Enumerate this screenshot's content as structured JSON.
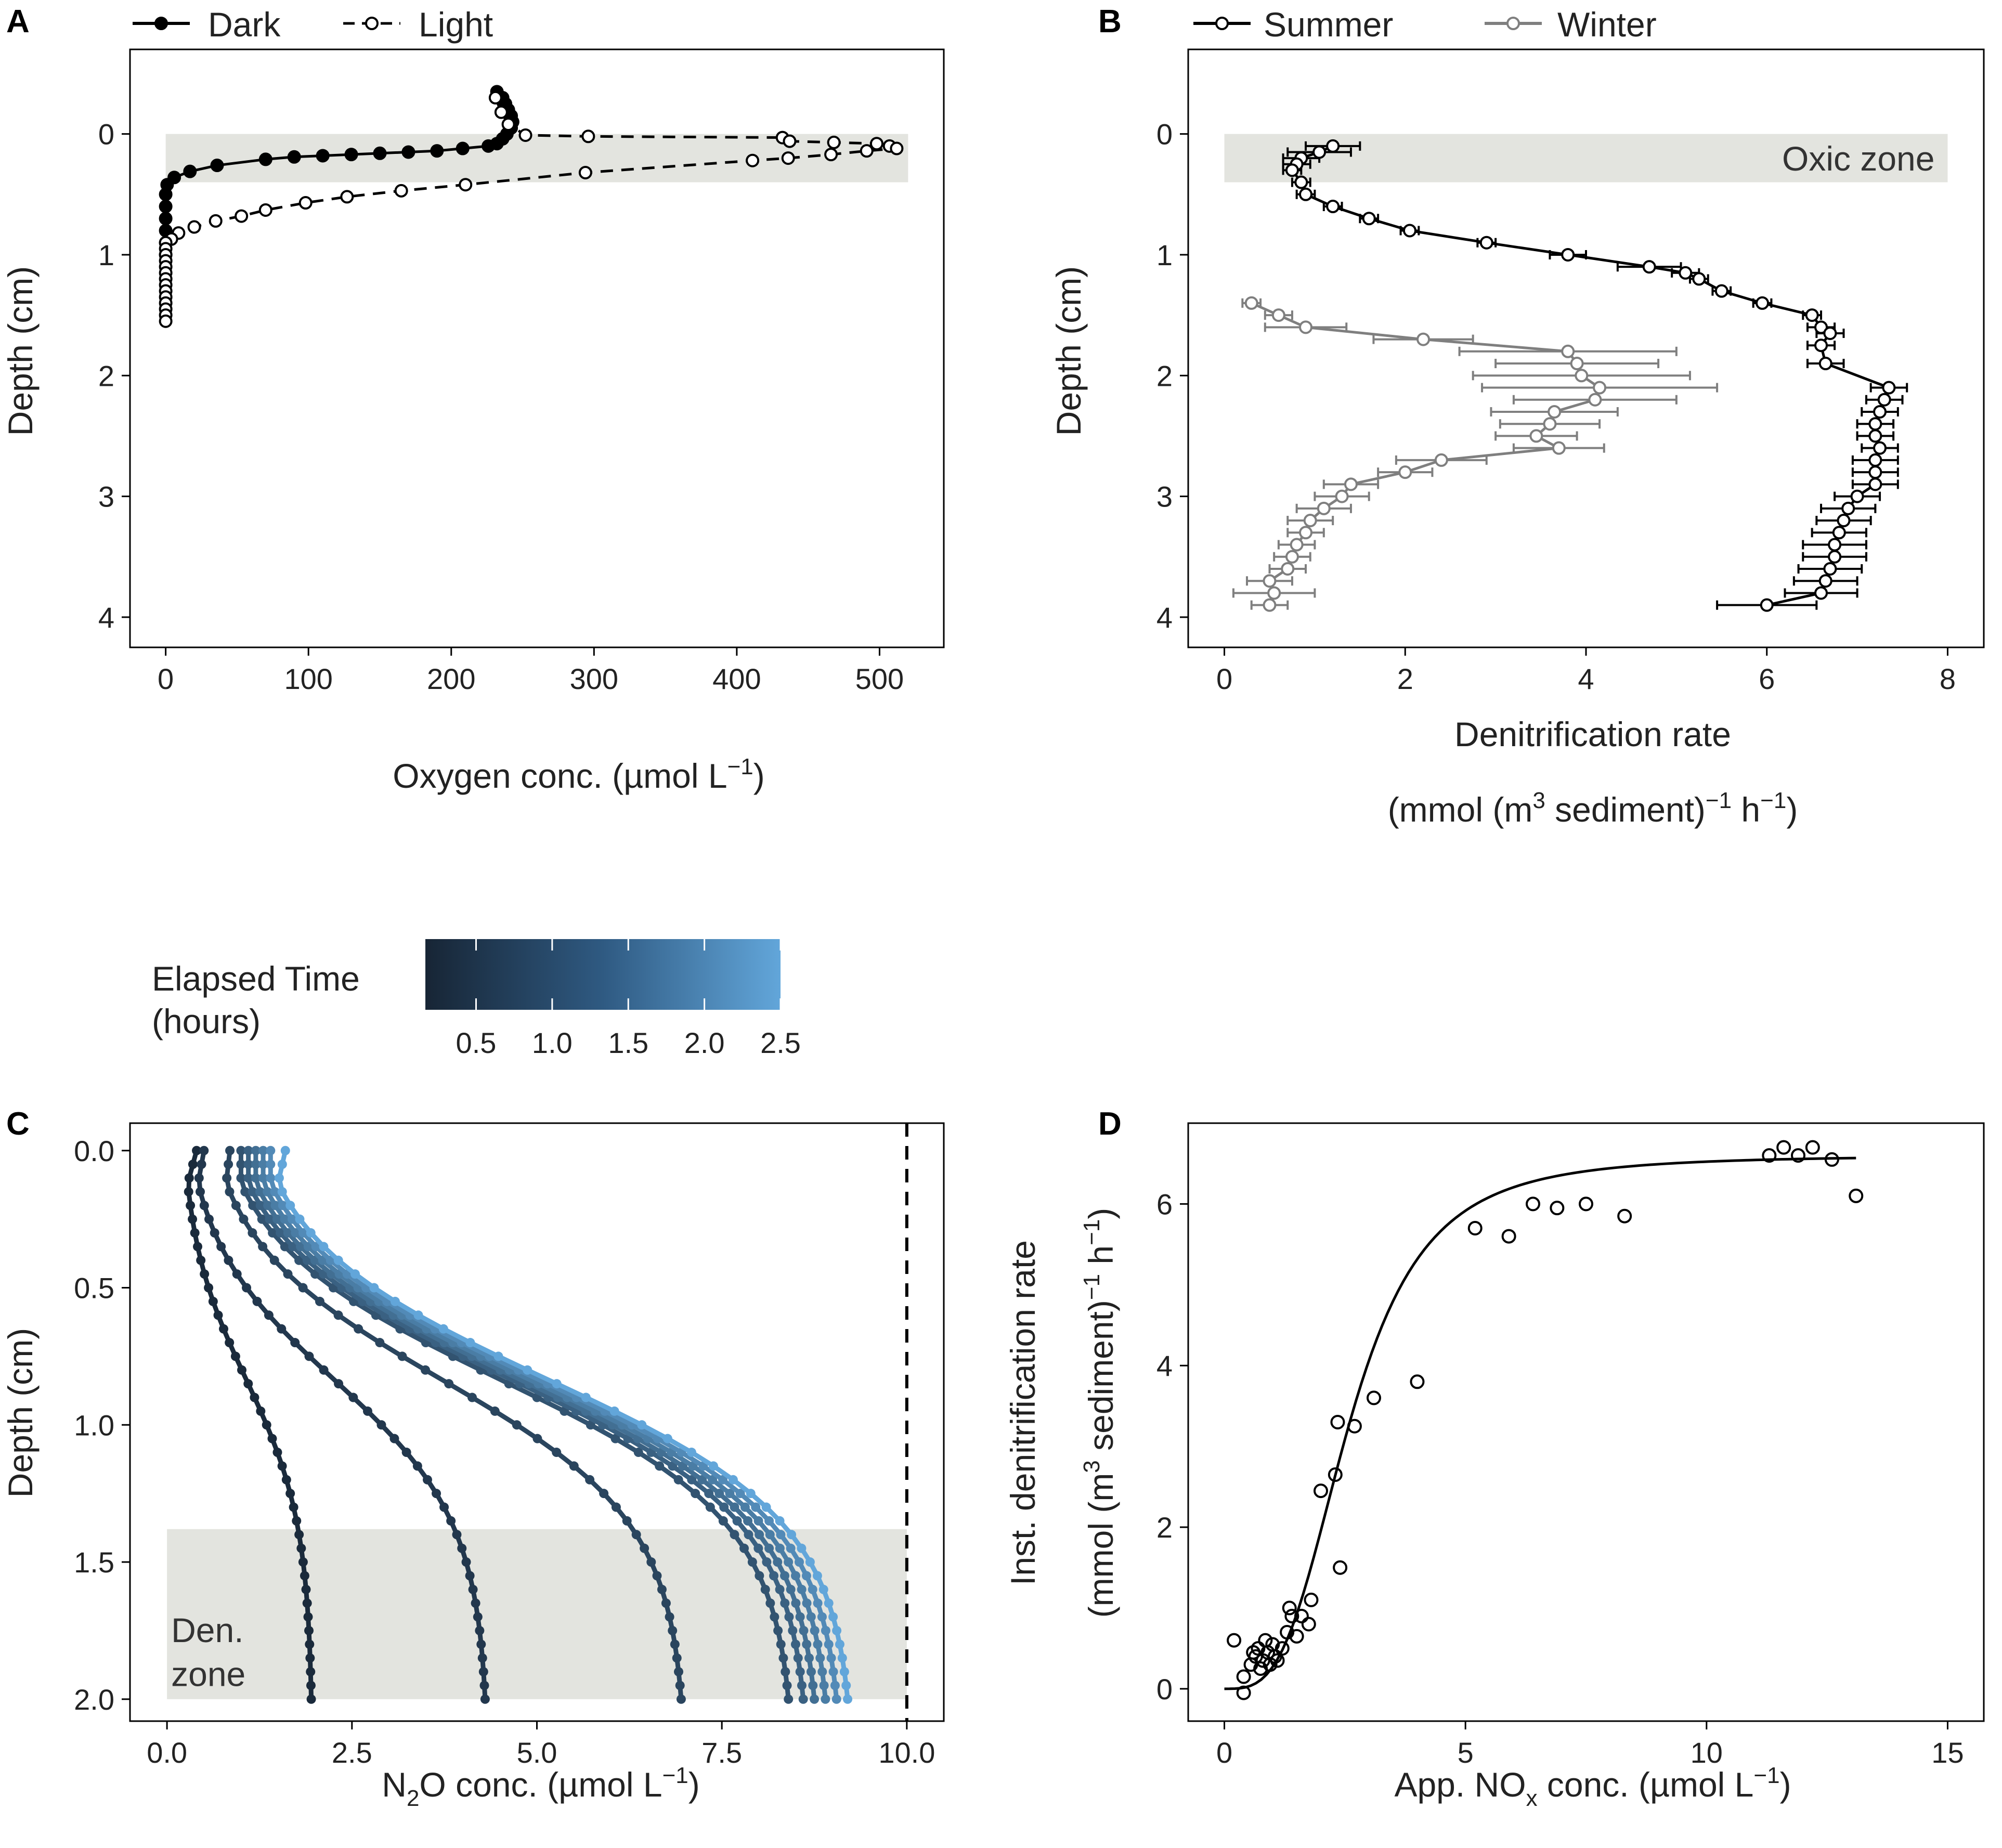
{
  "chart_data": [
    {
      "panel": "A",
      "type": "line",
      "xlabel_main": "Oxygen conc. (µmol L",
      "xlabel_sup": "−1",
      "xlabel_end": ")",
      "ylabel": "Depth (cm)",
      "xlim": [
        -25,
        545
      ],
      "ylim": [
        -0.7,
        4.25
      ],
      "xticks": [
        0,
        100,
        200,
        300,
        400,
        500
      ],
      "yticks": [
        0,
        1,
        2,
        3,
        4
      ],
      "shade": {
        "ymin": 0.0,
        "ymax": 0.4,
        "xmin": 0,
        "xmax": 520
      },
      "legend": [
        {
          "name": "Dark",
          "style": "solid",
          "marker": "filled"
        },
        {
          "name": "Light",
          "style": "dashed",
          "marker": "open"
        }
      ],
      "series": [
        {
          "name": "Dark",
          "style": "solid",
          "marker": "filled",
          "points": [
            [
              232,
              -0.35
            ],
            [
              236,
              -0.3
            ],
            [
              238,
              -0.25
            ],
            [
              240,
              -0.2
            ],
            [
              242,
              -0.15
            ],
            [
              243,
              -0.1
            ],
            [
              242,
              -0.05
            ],
            [
              239,
              0.0
            ],
            [
              236,
              0.04
            ],
            [
              232,
              0.08
            ],
            [
              226,
              0.1
            ],
            [
              208,
              0.12
            ],
            [
              190,
              0.14
            ],
            [
              170,
              0.15
            ],
            [
              150,
              0.16
            ],
            [
              130,
              0.17
            ],
            [
              110,
              0.18
            ],
            [
              90,
              0.19
            ],
            [
              70,
              0.21
            ],
            [
              36,
              0.26
            ],
            [
              17,
              0.31
            ],
            [
              6,
              0.36
            ],
            [
              1,
              0.42
            ],
            [
              0,
              0.5
            ],
            [
              0,
              0.6
            ],
            [
              0,
              0.7
            ],
            [
              0,
              0.8
            ],
            [
              0,
              0.9
            ],
            [
              0,
              1.0
            ]
          ]
        },
        {
          "name": "Light",
          "style": "dashed",
          "marker": "open",
          "points": [
            [
              231,
              -0.3
            ],
            [
              235,
              -0.18
            ],
            [
              240,
              -0.08
            ],
            [
              252,
              0.01
            ],
            [
              296,
              0.02
            ],
            [
              432,
              0.03
            ],
            [
              437,
              0.06
            ],
            [
              468,
              0.07
            ],
            [
              498,
              0.08
            ],
            [
              507,
              0.1
            ],
            [
              512,
              0.12
            ],
            [
              491,
              0.14
            ],
            [
              466,
              0.17
            ],
            [
              436,
              0.2
            ],
            [
              411,
              0.22
            ],
            [
              294,
              0.32
            ],
            [
              210,
              0.42
            ],
            [
              165,
              0.47
            ],
            [
              127,
              0.52
            ],
            [
              98,
              0.57
            ],
            [
              70,
              0.63
            ],
            [
              53,
              0.68
            ],
            [
              35,
              0.72
            ],
            [
              20,
              0.77
            ],
            [
              9,
              0.82
            ],
            [
              4,
              0.87
            ],
            [
              0,
              0.9
            ],
            [
              0,
              0.95
            ],
            [
              0,
              1.0
            ],
            [
              0,
              1.05
            ],
            [
              0,
              1.1
            ],
            [
              0,
              1.15
            ],
            [
              0,
              1.2
            ],
            [
              0,
              1.25
            ],
            [
              0,
              1.3
            ],
            [
              0,
              1.35
            ],
            [
              0,
              1.4
            ],
            [
              0,
              1.45
            ],
            [
              0,
              1.5
            ],
            [
              0,
              1.55
            ]
          ]
        }
      ]
    },
    {
      "panel": "B",
      "type": "line",
      "xlabel": "Denitrification rate",
      "xlabel2_main": "(mmol (m",
      "xlabel2_sup1": "3",
      "xlabel2_mid": " sediment)",
      "xlabel2_sup2": "−1",
      "xlabel2_mid2": " h",
      "xlabel2_sup3": "−1",
      "xlabel2_end": ")",
      "ylabel": "Depth (cm)",
      "xlim": [
        -0.4,
        8.4
      ],
      "ylim": [
        -0.7,
        4.25
      ],
      "xticks": [
        0,
        2,
        4,
        6,
        8
      ],
      "yticks": [
        0,
        1,
        2,
        3,
        4
      ],
      "shade": {
        "ymin": 0.0,
        "ymax": 0.4,
        "xmin": 0,
        "xmax": 8
      },
      "shade_label": "Oxic zone",
      "legend": [
        {
          "name": "Summer",
          "color": "#000000"
        },
        {
          "name": "Winter",
          "color": "#7f7f7f"
        }
      ],
      "series": [
        {
          "name": "Summer",
          "color": "#000000",
          "points": [
            [
              1.2,
              0.1,
              0.3
            ],
            [
              1.05,
              0.15,
              0.35
            ],
            [
              0.85,
              0.2,
              0.2
            ],
            [
              0.8,
              0.25,
              0.15
            ],
            [
              0.75,
              0.3,
              0.1
            ],
            [
              0.85,
              0.4,
              0.1
            ],
            [
              0.9,
              0.5,
              0.1
            ],
            [
              1.2,
              0.6,
              0.1
            ],
            [
              1.6,
              0.7,
              0.1
            ],
            [
              2.05,
              0.8,
              0.1
            ],
            [
              2.9,
              0.9,
              0.1
            ],
            [
              3.8,
              1.0,
              0.2
            ],
            [
              4.7,
              1.1,
              0.35
            ],
            [
              5.1,
              1.15,
              0.15
            ],
            [
              5.25,
              1.2,
              0.1
            ],
            [
              5.5,
              1.3,
              0.1
            ],
            [
              5.95,
              1.4,
              0.1
            ],
            [
              6.5,
              1.5,
              0.1
            ],
            [
              6.6,
              1.6,
              0.15
            ],
            [
              6.7,
              1.65,
              0.15
            ],
            [
              6.6,
              1.75,
              0.15
            ],
            [
              6.65,
              1.9,
              0.2
            ],
            [
              7.35,
              2.1,
              0.2
            ],
            [
              7.3,
              2.2,
              0.2
            ],
            [
              7.25,
              2.3,
              0.2
            ],
            [
              7.2,
              2.4,
              0.2
            ],
            [
              7.2,
              2.5,
              0.2
            ],
            [
              7.25,
              2.6,
              0.2
            ],
            [
              7.2,
              2.7,
              0.25
            ],
            [
              7.2,
              2.8,
              0.25
            ],
            [
              7.2,
              2.9,
              0.25
            ],
            [
              7.0,
              3.0,
              0.25
            ],
            [
              6.9,
              3.1,
              0.3
            ],
            [
              6.85,
              3.2,
              0.3
            ],
            [
              6.8,
              3.3,
              0.3
            ],
            [
              6.75,
              3.4,
              0.35
            ],
            [
              6.75,
              3.5,
              0.35
            ],
            [
              6.7,
              3.6,
              0.35
            ],
            [
              6.65,
              3.7,
              0.35
            ],
            [
              6.6,
              3.8,
              0.4
            ],
            [
              6.0,
              3.9,
              0.55
            ]
          ]
        },
        {
          "name": "Winter",
          "color": "#7f7f7f",
          "points": [
            [
              0.3,
              1.4,
              0.1
            ],
            [
              0.6,
              1.5,
              0.15
            ],
            [
              0.9,
              1.6,
              0.45
            ],
            [
              2.2,
              1.7,
              0.55
            ],
            [
              3.8,
              1.8,
              1.2
            ],
            [
              3.9,
              1.9,
              0.9
            ],
            [
              3.95,
              2.0,
              1.2
            ],
            [
              4.15,
              2.1,
              1.3
            ],
            [
              4.1,
              2.2,
              0.9
            ],
            [
              3.65,
              2.3,
              0.7
            ],
            [
              3.6,
              2.4,
              0.55
            ],
            [
              3.45,
              2.5,
              0.45
            ],
            [
              3.7,
              2.6,
              0.5
            ],
            [
              2.4,
              2.7,
              0.5
            ],
            [
              2.0,
              2.8,
              0.3
            ],
            [
              1.4,
              2.9,
              0.3
            ],
            [
              1.3,
              3.0,
              0.3
            ],
            [
              1.1,
              3.1,
              0.3
            ],
            [
              0.95,
              3.2,
              0.25
            ],
            [
              0.9,
              3.3,
              0.2
            ],
            [
              0.8,
              3.4,
              0.2
            ],
            [
              0.75,
              3.5,
              0.2
            ],
            [
              0.7,
              3.6,
              0.2
            ],
            [
              0.5,
              3.7,
              0.25
            ],
            [
              0.55,
              3.8,
              0.45
            ],
            [
              0.5,
              3.9,
              0.2
            ]
          ]
        }
      ]
    },
    {
      "panel": "C",
      "type": "line",
      "xlabel_pre": "N",
      "xlabel_sub": "2",
      "xlabel_main": "O conc. (µmol L",
      "xlabel_sup": "−1",
      "xlabel_end": ")",
      "ylabel": "Depth (cm)",
      "xlim": [
        -0.5,
        10.5
      ],
      "ylim": [
        -0.1,
        2.08
      ],
      "xticks": [
        0.0,
        2.5,
        5.0,
        7.5,
        10.0
      ],
      "xticklabels": [
        "0.0",
        "2.5",
        "5.0",
        "7.5",
        "10.0"
      ],
      "yticks": [
        0.0,
        0.5,
        1.0,
        1.5,
        2.0
      ],
      "yticklabels": [
        "0.0",
        "0.5",
        "1.0",
        "1.5",
        "2.0"
      ],
      "vline": 10.0,
      "shade": {
        "ymin": 1.38,
        "ymax": 2.0,
        "xmin": 0,
        "xmax": 10
      },
      "shade_label": [
        "Den.",
        "zone"
      ],
      "colorbar": {
        "title": [
          "Elapsed Time",
          "(hours)"
        ],
        "ticks": [
          0.5,
          1.0,
          1.5,
          2.0,
          2.5
        ],
        "ticklabels": [
          "0.5",
          "1.0",
          "1.5",
          "2.0",
          "2.5"
        ],
        "range": [
          0.167,
          2.5
        ],
        "color_low": "#172535",
        "color_high": "#62a6da"
      },
      "series": [
        {
          "time": 0.25,
          "x0": 0.4,
          "xmin": 0.28,
          "xend": 1.95
        },
        {
          "time": 0.5,
          "x0": 0.5,
          "xmin": 0.42,
          "xend": 4.3
        },
        {
          "time": 0.75,
          "x0": 0.85,
          "xmin": 0.8,
          "xend": 6.95
        },
        {
          "time": 1.0,
          "x0": 1.0,
          "xmin": 1.0,
          "xend": 8.4
        },
        {
          "time": 1.25,
          "x0": 1.1,
          "xmin": 1.1,
          "xend": 8.6
        },
        {
          "time": 1.5,
          "x0": 1.2,
          "xmin": 1.2,
          "xend": 8.75
        },
        {
          "time": 1.75,
          "x0": 1.3,
          "xmin": 1.3,
          "xend": 8.9
        },
        {
          "time": 2.0,
          "x0": 1.4,
          "xmin": 1.4,
          "xend": 9.05
        },
        {
          "time": 2.5,
          "x0": 1.6,
          "xmin": 1.5,
          "xend": 9.2
        }
      ]
    },
    {
      "panel": "D",
      "type": "scatter",
      "xlabel_main": "App.  NO",
      "xlabel_sub": "x",
      "xlabel_rest": "  conc. (µmol L",
      "xlabel_sup": "−1",
      "xlabel_end": ")",
      "ylabel1": "Inst. denitrification rate",
      "ylabel2_main": "(mmol (m",
      "ylabel2_sup1": "3",
      "ylabel2_mid": " sediment)",
      "ylabel2_sup2": "−1",
      "ylabel2_mid2": " h",
      "ylabel2_sup3": "−1",
      "ylabel2_end": ")",
      "xlim": [
        -0.75,
        15.75
      ],
      "ylim": [
        -0.4,
        7.0
      ],
      "xticks": [
        0,
        5,
        10,
        15
      ],
      "yticks": [
        0,
        2,
        4,
        6
      ],
      "points": [
        [
          0.2,
          0.6
        ],
        [
          0.4,
          -0.05
        ],
        [
          0.4,
          0.15
        ],
        [
          0.55,
          0.3
        ],
        [
          0.6,
          0.45
        ],
        [
          0.65,
          0.4
        ],
        [
          0.7,
          0.5
        ],
        [
          0.75,
          0.25
        ],
        [
          0.8,
          0.35
        ],
        [
          0.85,
          0.6
        ],
        [
          0.9,
          0.45
        ],
        [
          0.95,
          0.3
        ],
        [
          1.0,
          0.55
        ],
        [
          1.05,
          0.4
        ],
        [
          1.1,
          0.35
        ],
        [
          1.2,
          0.5
        ],
        [
          1.3,
          0.7
        ],
        [
          1.35,
          1.0
        ],
        [
          1.4,
          0.9
        ],
        [
          1.5,
          0.65
        ],
        [
          1.6,
          0.9
        ],
        [
          1.75,
          0.8
        ],
        [
          1.8,
          1.1
        ],
        [
          2.0,
          2.45
        ],
        [
          2.3,
          2.65
        ],
        [
          2.35,
          3.3
        ],
        [
          2.4,
          1.5
        ],
        [
          2.7,
          3.25
        ],
        [
          3.1,
          3.6
        ],
        [
          4.0,
          3.8
        ],
        [
          5.2,
          5.7
        ],
        [
          5.9,
          5.6
        ],
        [
          6.4,
          6.0
        ],
        [
          6.9,
          5.95
        ],
        [
          7.5,
          6.0
        ],
        [
          8.3,
          5.85
        ],
        [
          11.3,
          6.6
        ],
        [
          11.6,
          6.7
        ],
        [
          11.9,
          6.6
        ],
        [
          12.2,
          6.7
        ],
        [
          12.6,
          6.55
        ],
        [
          13.1,
          6.1
        ]
      ],
      "fit_curve": {
        "vmax": 6.6,
        "km": 2.6,
        "hill": 3.3,
        "xmax": 13.1
      }
    }
  ]
}
